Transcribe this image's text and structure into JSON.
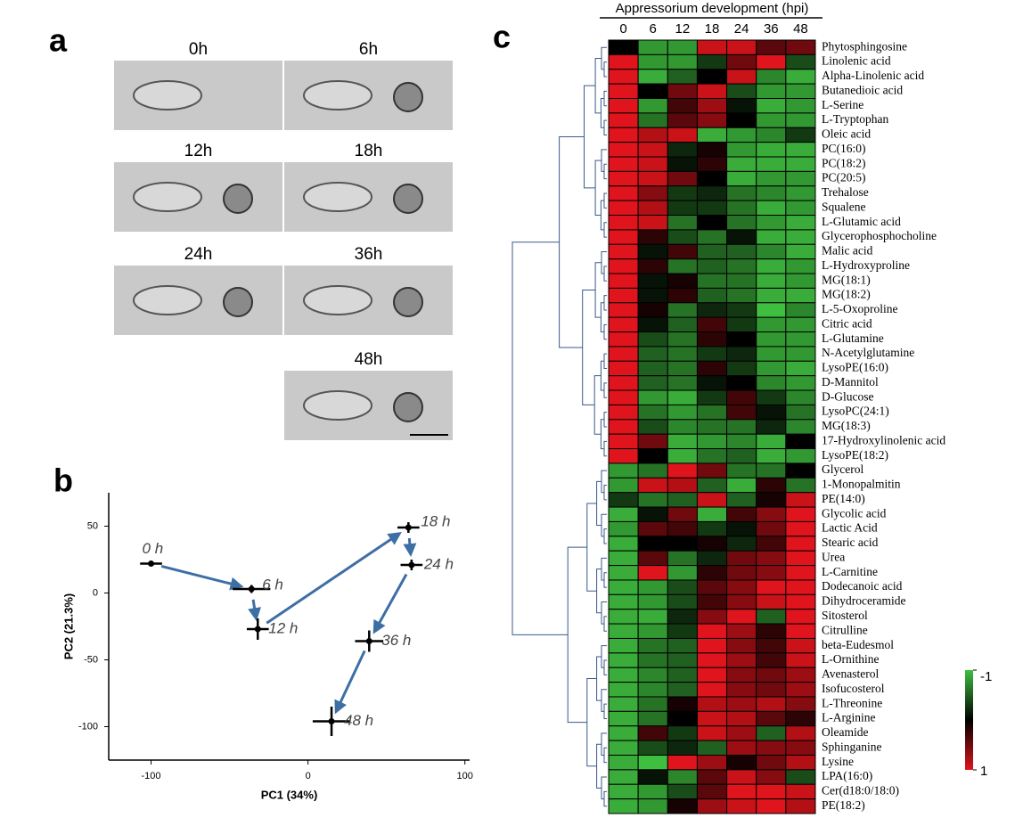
{
  "panel_labels": [
    "a",
    "b",
    "c"
  ],
  "panel_a": {
    "labels": [
      "0h",
      "6h",
      "12h",
      "18h",
      "24h",
      "36h",
      "48h"
    ]
  },
  "chart_data": [
    {
      "type": "scatter",
      "xlabel": "PC1 (34%)",
      "ylabel": "PC2 (21.3%)",
      "x": [
        -100,
        -36,
        -32,
        64,
        66,
        39,
        15
      ],
      "y": [
        22,
        3,
        -27,
        49,
        21,
        -36,
        -96
      ],
      "x_error": [
        7,
        12,
        7,
        7,
        7,
        9,
        12
      ],
      "y_error": [
        2,
        3,
        8,
        4,
        4,
        8,
        11
      ],
      "point_labels": [
        "0 h",
        "6 h",
        "12 h",
        "18 h",
        "24 h",
        "36 h",
        "48 h"
      ],
      "xlim": [
        -127,
        103
      ],
      "ylim": [
        -125,
        75
      ],
      "xticks": [
        -100,
        0,
        100
      ],
      "yticks": [
        50,
        0,
        -50,
        -100
      ],
      "color": "#000000",
      "arrow_color": "#3e6fa4"
    },
    {
      "type": "heatmap",
      "title": "Appressorium development (hpi)",
      "columns": [
        "0",
        "6",
        "12",
        "18",
        "24",
        "36",
        "48"
      ],
      "rows": [
        "Phytosphingosine",
        "Linolenic acid",
        "Alpha-Linolenic acid",
        "Butanedioic acid",
        "L-Serine",
        "L-Tryptophan",
        "Oleic acid",
        "PC(16:0)",
        "PC(18:2)",
        "PC(20:5)",
        "Trehalose",
        "Squalene",
        "L-Glutamic acid",
        "Glycerophosphocholine",
        "Malic acid",
        "L-Hydroxyproline",
        "MG(18:1)",
        "MG(18:2)",
        "L-5-Oxoproline",
        "Citric acid",
        "L-Glutamine",
        "N-Acetylglutamine",
        "LysoPE(16:0)",
        "D-Mannitol",
        "D-Glucose",
        "LysoPC(24:1)",
        "MG(18:3)",
        "17-Hydroxylinolenic acid",
        "LysoPE(18:2)",
        "Glycerol",
        "1-Monopalmitin",
        "PE(14:0)",
        "Glycolic acid",
        "Lactic Acid",
        "Stearic acid",
        "Urea",
        "L-Carnitine",
        "Dodecanoic acid",
        "Dihydroceramide",
        "Sitosterol",
        "Citrulline",
        "beta-Eudesmol",
        "L-Ornithine",
        "Avenasterol",
        "Isofucosterol",
        "L-Threonine",
        "L-Arginine",
        "Oleamide",
        "Sphinganine",
        "Lysine",
        "LPA(16:0)",
        "Cer(d18:0/18:0)",
        "PE(18:2)"
      ],
      "values": [
        [
          0,
          -0.8,
          -0.8,
          0.9,
          0.9,
          0.4,
          0.5
        ],
        [
          1,
          -0.8,
          -0.8,
          -0.3,
          0.5,
          1,
          -0.4
        ],
        [
          1,
          -0.9,
          -0.5,
          0,
          0.9,
          -0.7,
          -0.9
        ],
        [
          1,
          0,
          0.5,
          0.9,
          -0.4,
          -0.8,
          -0.8
        ],
        [
          1,
          -0.8,
          0.3,
          0.7,
          -0.1,
          -0.9,
          -0.8
        ],
        [
          1,
          -0.6,
          0.4,
          0.6,
          0,
          -0.8,
          -0.8
        ],
        [
          1,
          0.8,
          0.9,
          -0.9,
          -0.8,
          -0.7,
          -0.3
        ],
        [
          1,
          0.9,
          -0.2,
          0.1,
          -0.8,
          -0.9,
          -0.9
        ],
        [
          1,
          0.9,
          -0.1,
          0.2,
          -0.9,
          -0.9,
          -0.9
        ],
        [
          1,
          0.9,
          0.5,
          0,
          -0.9,
          -0.8,
          -0.8
        ],
        [
          1,
          0.6,
          -0.3,
          -0.2,
          -0.6,
          -0.7,
          -0.8
        ],
        [
          1,
          0.8,
          -0.3,
          -0.3,
          -0.6,
          -0.9,
          -0.8
        ],
        [
          1,
          0.9,
          -0.6,
          0,
          -0.6,
          -0.8,
          -0.9
        ],
        [
          1,
          0.2,
          -0.4,
          -0.6,
          -0.1,
          -0.9,
          -0.9
        ],
        [
          1,
          -0.1,
          0.3,
          -0.5,
          -0.5,
          -0.7,
          -0.9
        ],
        [
          1,
          0.2,
          -0.6,
          -0.5,
          -0.6,
          -0.9,
          -0.8
        ],
        [
          1,
          -0.1,
          0.1,
          -0.6,
          -0.6,
          -0.9,
          -0.8
        ],
        [
          1,
          -0.1,
          0.2,
          -0.5,
          -0.6,
          -0.9,
          -0.9
        ],
        [
          1,
          0.1,
          -0.6,
          -0.2,
          -0.3,
          -1,
          -0.7
        ],
        [
          1,
          -0.1,
          -0.5,
          0.3,
          -0.3,
          -0.8,
          -0.8
        ],
        [
          1,
          -0.4,
          -0.6,
          0.2,
          0,
          -0.8,
          -0.8
        ],
        [
          1,
          -0.5,
          -0.6,
          -0.3,
          -0.2,
          -0.8,
          -0.8
        ],
        [
          1,
          -0.5,
          -0.6,
          0.2,
          -0.3,
          -0.8,
          -0.9
        ],
        [
          1,
          -0.5,
          -0.6,
          -0.1,
          0,
          -0.7,
          -0.8
        ],
        [
          1,
          -0.8,
          -0.9,
          -0.3,
          0.3,
          -0.3,
          -0.7
        ],
        [
          1,
          -0.6,
          -0.8,
          -0.6,
          0.3,
          -0.1,
          -0.6
        ],
        [
          1,
          -0.4,
          -0.7,
          -0.6,
          -0.6,
          -0.2,
          -0.7
        ],
        [
          1,
          0.5,
          -0.9,
          -0.8,
          -0.7,
          -0.9,
          0
        ],
        [
          1,
          0,
          -0.9,
          -0.6,
          -0.5,
          -0.9,
          -0.8
        ],
        [
          -0.8,
          -0.6,
          1,
          0.5,
          -0.6,
          -0.6,
          0
        ],
        [
          -0.8,
          0.9,
          0.8,
          -0.5,
          -0.9,
          0.2,
          -0.6
        ],
        [
          -0.3,
          -0.6,
          -0.5,
          0.9,
          -0.5,
          0.1,
          0.9
        ],
        [
          -0.9,
          -0.1,
          0.5,
          -0.9,
          0.3,
          0.6,
          1
        ],
        [
          -0.8,
          0.4,
          0.3,
          -0.3,
          -0.1,
          0.5,
          1
        ],
        [
          -0.9,
          0,
          0,
          0.1,
          -0.2,
          0.3,
          1
        ],
        [
          -0.9,
          0.4,
          -0.6,
          -0.2,
          0.5,
          0.6,
          1
        ],
        [
          -0.9,
          1,
          -0.8,
          0.2,
          0.5,
          0.6,
          1
        ],
        [
          -0.9,
          -0.8,
          -0.4,
          0.4,
          0.6,
          1,
          1
        ],
        [
          -0.9,
          -0.8,
          -0.4,
          0.3,
          0.6,
          0.9,
          1
        ],
        [
          -0.9,
          -0.9,
          -0.2,
          0.6,
          1,
          -0.5,
          1
        ],
        [
          -0.9,
          -0.8,
          -0.3,
          1,
          0.7,
          0.2,
          1
        ],
        [
          -0.9,
          -0.6,
          -0.5,
          1,
          0.6,
          0.3,
          0.9
        ],
        [
          -0.9,
          -0.6,
          -0.5,
          1,
          0.7,
          0.3,
          0.9
        ],
        [
          -0.9,
          -0.7,
          -0.5,
          1,
          0.6,
          0.5,
          0.7
        ],
        [
          -0.9,
          -0.7,
          -0.5,
          1,
          0.6,
          0.5,
          0.7
        ],
        [
          -0.9,
          -0.6,
          0.1,
          0.8,
          0.7,
          0.8,
          0.6
        ],
        [
          -0.9,
          -0.6,
          0,
          0.9,
          0.8,
          0.4,
          0.2
        ],
        [
          -0.9,
          0.3,
          -0.3,
          0.9,
          0.7,
          -0.5,
          0.8
        ],
        [
          -0.9,
          -0.4,
          -0.2,
          -0.5,
          0.7,
          0.6,
          0.6
        ],
        [
          -0.9,
          -1,
          1,
          0.7,
          0.1,
          0.5,
          0.8
        ],
        [
          -0.9,
          -0.1,
          -0.7,
          0.4,
          0.9,
          0.6,
          -0.4
        ],
        [
          -0.9,
          -0.8,
          -0.4,
          0.4,
          1,
          1,
          0.9
        ],
        [
          -0.9,
          -0.8,
          0.1,
          0.7,
          0.9,
          1,
          0.8
        ]
      ],
      "zlim": [
        -1,
        1
      ],
      "zticks": [
        -1,
        1
      ],
      "colors": [
        "#3fbf3f",
        "#000000",
        "#e0141c"
      ],
      "dendrogram_color": "#3b5a8a",
      "first_cluster_size": 29
    }
  ]
}
